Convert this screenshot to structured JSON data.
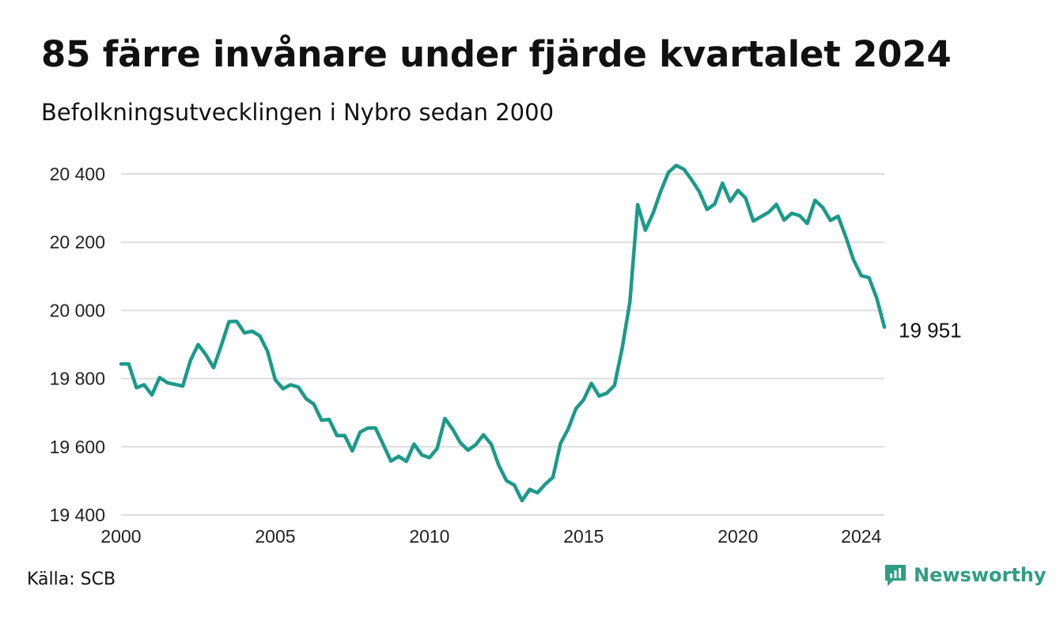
{
  "header": {
    "title": "85 färre invånare under fjärde kvartalet 2024",
    "subtitle": "Befolkningsutvecklingen i Nybro sedan 2000"
  },
  "footer": {
    "source": "Källa: SCB",
    "brand": "Newsworthy",
    "brand_icon": "newsworthy-logo-icon"
  },
  "colors": {
    "line": "#1b9a8a",
    "grid": "#dddddd",
    "brand": "#2f9e86"
  },
  "chart_data": {
    "type": "line",
    "title": "85 färre invånare under fjärde kvartalet 2024",
    "subtitle": "Befolkningsutvecklingen i Nybro sedan 2000",
    "xlabel": "",
    "ylabel": "",
    "x_ticks": [
      2000,
      2005,
      2010,
      2015,
      2020,
      2024
    ],
    "y_ticks": [
      19400,
      19600,
      19800,
      20000,
      20200,
      20400
    ],
    "y_tick_labels": [
      "19 400",
      "19 600",
      "19 800",
      "20 000",
      "20 200",
      "20 400"
    ],
    "x_tick_labels": [
      "2000",
      "2005",
      "2010",
      "2015",
      "2020",
      "2024"
    ],
    "xlim": [
      2000,
      2024.75
    ],
    "ylim": [
      19400,
      20430
    ],
    "grid": "horizontal",
    "end_label": "19 951",
    "series": [
      {
        "x": [
          2000.0,
          2000.25,
          2000.5,
          2000.75,
          2001.0,
          2001.25,
          2001.5,
          2001.75,
          2002.0,
          2002.25,
          2002.5,
          2002.75,
          2003.0,
          2003.25,
          2003.5,
          2003.75,
          2004.0,
          2004.25,
          2004.5,
          2004.75,
          2005.0,
          2005.25,
          2005.5,
          2005.75,
          2006.0,
          2006.25,
          2006.5,
          2006.75,
          2007.0,
          2007.25,
          2007.5,
          2007.75,
          2008.0,
          2008.25,
          2008.5,
          2008.75,
          2009.0,
          2009.25,
          2009.5,
          2009.75,
          2010.0,
          2010.25,
          2010.5,
          2010.75,
          2011.0,
          2011.25,
          2011.5,
          2011.75,
          2012.0,
          2012.25,
          2012.5,
          2012.75,
          2013.0,
          2013.25,
          2013.5,
          2013.75,
          2014.0,
          2014.25,
          2014.5,
          2014.75,
          2015.0,
          2015.25,
          2015.5,
          2015.75,
          2016.0,
          2016.25,
          2016.5,
          2016.75,
          2017.0,
          2017.25,
          2017.5,
          2017.75,
          2018.0,
          2018.25,
          2018.5,
          2018.75,
          2019.0,
          2019.25,
          2019.5,
          2019.75,
          2020.0,
          2020.25,
          2020.5,
          2020.75,
          2021.0,
          2021.25,
          2021.5,
          2021.75,
          2022.0,
          2022.25,
          2022.5,
          2022.75,
          2023.0,
          2023.25,
          2023.5,
          2023.75,
          2024.0,
          2024.25,
          2024.5,
          2024.75
        ],
        "values": [
          19843,
          19843,
          19773,
          19782,
          19752,
          19803,
          19788,
          19783,
          19778,
          19853,
          19900,
          19870,
          19832,
          19897,
          19967,
          19968,
          19934,
          19939,
          19925,
          19880,
          19797,
          19770,
          19782,
          19775,
          19741,
          19725,
          19678,
          19680,
          19633,
          19633,
          19588,
          19643,
          19655,
          19655,
          19607,
          19558,
          19572,
          19557,
          19608,
          19576,
          19568,
          19595,
          19683,
          19652,
          19612,
          19590,
          19606,
          19635,
          19608,
          19545,
          19500,
          19488,
          19442,
          19475,
          19465,
          19490,
          19510,
          19610,
          19653,
          19712,
          19738,
          19786,
          19749,
          19757,
          19780,
          19890,
          20025,
          20310,
          20235,
          20285,
          20350,
          20405,
          20425,
          20414,
          20383,
          20348,
          20296,
          20312,
          20373,
          20320,
          20352,
          20330,
          20262,
          20275,
          20288,
          20311,
          20265,
          20285,
          20278,
          20255,
          20323,
          20302,
          20264,
          20276,
          20215,
          20148,
          20102,
          20096,
          20036,
          19951
        ]
      }
    ]
  }
}
